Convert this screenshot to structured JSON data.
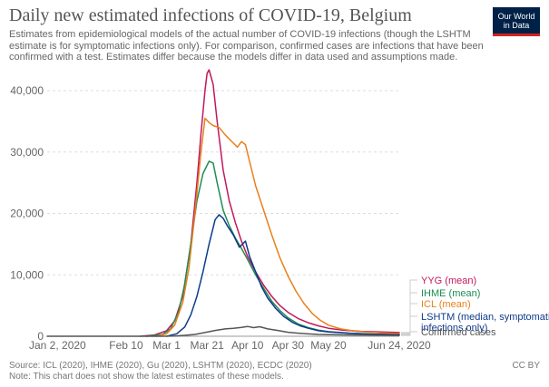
{
  "header": {
    "title": "Daily new estimated infections of COVID-19, Belgium",
    "subtitle": "Estimates from epidemiological models of the actual number of COVID-19 infections (though the LSHTM estimate is for symptomatic infections only). For comparison, confirmed cases are infections that have been confirmed with a test. Estimates differ because the models differ in data used and assumptions made.",
    "logo_line1": "Our World",
    "logo_line2": "in Data"
  },
  "footer": {
    "source": "Source: ICL (2020), IHME (2020), Gu (2020), LSHTM (2020), ECDC (2020)",
    "note": "Note: This chart does not show the latest estimates of these models.",
    "license": "CC BY"
  },
  "colors": {
    "yyg": "#c2185b",
    "ihme": "#1e8c52",
    "icl": "#e8801c",
    "lshtm": "#0d3b8c",
    "confirmed": "#555555",
    "grid": "#dddddd",
    "axis_text": "#666666",
    "logo_bg": "#002147",
    "logo_accent": "#ce261e"
  },
  "chart_data": {
    "type": "line",
    "title": "Daily new estimated infections of COVID-19, Belgium",
    "x_axis": {
      "type": "date",
      "min": "2020-01-02",
      "max": "2020-06-24",
      "ticks": [
        {
          "date": "2020-01-02",
          "label": "Jan 2, 2020"
        },
        {
          "date": "2020-02-10",
          "label": "Feb 10"
        },
        {
          "date": "2020-03-01",
          "label": "Mar 1"
        },
        {
          "date": "2020-03-21",
          "label": "Mar 21"
        },
        {
          "date": "2020-04-10",
          "label": "Apr 10"
        },
        {
          "date": "2020-04-30",
          "label": "Apr 30"
        },
        {
          "date": "2020-05-20",
          "label": "May 20"
        },
        {
          "date": "2020-06-24",
          "label": "Jun 24, 2020"
        }
      ]
    },
    "y_axis": {
      "min": 0,
      "max": 40000,
      "ticks": [
        {
          "value": 0,
          "label": "0"
        },
        {
          "value": 10000,
          "label": "10,000"
        },
        {
          "value": 20000,
          "label": "20,000"
        },
        {
          "value": 30000,
          "label": "30,000"
        },
        {
          "value": 40000,
          "label": "40,000"
        }
      ]
    },
    "grid": true,
    "legend_position": "right",
    "series": [
      {
        "key": "yyg",
        "name": "YYG (mean)",
        "label_lines": [
          "YYG (mean)"
        ],
        "points": [
          [
            "2020-02-17",
            0
          ],
          [
            "2020-02-24",
            200
          ],
          [
            "2020-03-01",
            900
          ],
          [
            "2020-03-05",
            2500
          ],
          [
            "2020-03-09",
            6500
          ],
          [
            "2020-03-13",
            15000
          ],
          [
            "2020-03-16",
            25000
          ],
          [
            "2020-03-18",
            33000
          ],
          [
            "2020-03-20",
            40000
          ],
          [
            "2020-03-21",
            42800
          ],
          [
            "2020-03-22",
            43400
          ],
          [
            "2020-03-24",
            41000
          ],
          [
            "2020-03-26",
            35000
          ],
          [
            "2020-03-29",
            27000
          ],
          [
            "2020-04-01",
            22000
          ],
          [
            "2020-04-04",
            18500
          ],
          [
            "2020-04-07",
            15500
          ],
          [
            "2020-04-10",
            13000
          ],
          [
            "2020-04-14",
            10500
          ],
          [
            "2020-04-18",
            8300
          ],
          [
            "2020-04-22",
            6500
          ],
          [
            "2020-04-26",
            5000
          ],
          [
            "2020-04-30",
            3900
          ],
          [
            "2020-05-05",
            2900
          ],
          [
            "2020-05-10",
            2200
          ],
          [
            "2020-05-15",
            1700
          ],
          [
            "2020-05-20",
            1300
          ],
          [
            "2020-05-27",
            1000
          ],
          [
            "2020-06-05",
            800
          ],
          [
            "2020-06-15",
            700
          ],
          [
            "2020-06-24",
            600
          ]
        ]
      },
      {
        "key": "ihme",
        "name": "IHME (mean)",
        "label_lines": [
          "IHME (mean)"
        ],
        "points": [
          [
            "2020-02-20",
            0
          ],
          [
            "2020-02-28",
            300
          ],
          [
            "2020-03-03",
            1200
          ],
          [
            "2020-03-07",
            4000
          ],
          [
            "2020-03-10",
            8500
          ],
          [
            "2020-03-13",
            15000
          ],
          [
            "2020-03-16",
            22000
          ],
          [
            "2020-03-19",
            26500
          ],
          [
            "2020-03-22",
            28500
          ],
          [
            "2020-03-24",
            28200
          ],
          [
            "2020-03-26",
            25000
          ],
          [
            "2020-03-29",
            20500
          ],
          [
            "2020-04-01",
            18000
          ],
          [
            "2020-04-04",
            16000
          ],
          [
            "2020-04-07",
            14300
          ],
          [
            "2020-04-10",
            12500
          ],
          [
            "2020-04-14",
            10000
          ],
          [
            "2020-04-18",
            7800
          ],
          [
            "2020-04-22",
            5700
          ],
          [
            "2020-04-26",
            4200
          ],
          [
            "2020-04-30",
            3000
          ],
          [
            "2020-05-05",
            2000
          ],
          [
            "2020-05-10",
            1400
          ],
          [
            "2020-05-15",
            1000
          ],
          [
            "2020-05-20",
            750
          ],
          [
            "2020-05-30",
            500
          ],
          [
            "2020-06-10",
            350
          ],
          [
            "2020-06-24",
            250
          ]
        ]
      },
      {
        "key": "icl",
        "name": "ICL (mean)",
        "label_lines": [
          "ICL (mean)"
        ],
        "points": [
          [
            "2020-02-25",
            0
          ],
          [
            "2020-03-01",
            400
          ],
          [
            "2020-03-05",
            1800
          ],
          [
            "2020-03-09",
            5500
          ],
          [
            "2020-03-12",
            11000
          ],
          [
            "2020-03-15",
            20000
          ],
          [
            "2020-03-18",
            30000
          ],
          [
            "2020-03-20",
            35500
          ],
          [
            "2020-03-22",
            34800
          ],
          [
            "2020-03-24",
            34300
          ],
          [
            "2020-03-27",
            34000
          ],
          [
            "2020-03-30",
            32800
          ],
          [
            "2020-04-02",
            31800
          ],
          [
            "2020-04-05",
            30800
          ],
          [
            "2020-04-07",
            31700
          ],
          [
            "2020-04-09",
            31200
          ],
          [
            "2020-04-11",
            28500
          ],
          [
            "2020-04-14",
            24500
          ],
          [
            "2020-04-18",
            20500
          ],
          [
            "2020-04-22",
            16500
          ],
          [
            "2020-04-26",
            12800
          ],
          [
            "2020-04-30",
            9800
          ],
          [
            "2020-05-04",
            7300
          ],
          [
            "2020-05-08",
            5300
          ],
          [
            "2020-05-12",
            3700
          ],
          [
            "2020-05-16",
            2600
          ],
          [
            "2020-05-20",
            1800
          ],
          [
            "2020-05-26",
            1200
          ],
          [
            "2020-06-03",
            800
          ],
          [
            "2020-06-15",
            550
          ],
          [
            "2020-06-24",
            450
          ]
        ]
      },
      {
        "key": "lshtm",
        "name": "LSHTM (median, symptomatic infections only)",
        "label_lines": [
          "LSHTM (median, symptomatic",
          "infections only)"
        ],
        "points": [
          [
            "2020-03-01",
            0
          ],
          [
            "2020-03-06",
            400
          ],
          [
            "2020-03-10",
            1500
          ],
          [
            "2020-03-13",
            3500
          ],
          [
            "2020-03-16",
            6500
          ],
          [
            "2020-03-19",
            10500
          ],
          [
            "2020-03-22",
            15000
          ],
          [
            "2020-03-25",
            19000
          ],
          [
            "2020-03-27",
            19800
          ],
          [
            "2020-03-29",
            19200
          ],
          [
            "2020-03-31",
            18000
          ],
          [
            "2020-04-03",
            16500
          ],
          [
            "2020-04-06",
            14500
          ],
          [
            "2020-04-09",
            15500
          ],
          [
            "2020-04-11",
            13000
          ],
          [
            "2020-04-14",
            10500
          ],
          [
            "2020-04-17",
            8000
          ],
          [
            "2020-04-20",
            6200
          ],
          [
            "2020-04-24",
            4500
          ],
          [
            "2020-04-28",
            3200
          ],
          [
            "2020-05-02",
            2300
          ],
          [
            "2020-05-06",
            1700
          ],
          [
            "2020-05-10",
            1300
          ],
          [
            "2020-05-15",
            900
          ],
          [
            "2020-05-20",
            700
          ],
          [
            "2020-05-30",
            500
          ],
          [
            "2020-06-10",
            350
          ],
          [
            "2020-06-24",
            250
          ]
        ]
      },
      {
        "key": "confirmed",
        "name": "Confirmed cases",
        "label_lines": [
          "Confirmed cases"
        ],
        "points": [
          [
            "2020-01-02",
            0
          ],
          [
            "2020-02-28",
            0
          ],
          [
            "2020-03-05",
            40
          ],
          [
            "2020-03-10",
            150
          ],
          [
            "2020-03-15",
            300
          ],
          [
            "2020-03-20",
            600
          ],
          [
            "2020-03-25",
            950
          ],
          [
            "2020-03-30",
            1200
          ],
          [
            "2020-04-03",
            1300
          ],
          [
            "2020-04-07",
            1450
          ],
          [
            "2020-04-10",
            1600
          ],
          [
            "2020-04-13",
            1400
          ],
          [
            "2020-04-16",
            1550
          ],
          [
            "2020-04-20",
            1200
          ],
          [
            "2020-04-25",
            950
          ],
          [
            "2020-04-30",
            650
          ],
          [
            "2020-05-05",
            500
          ],
          [
            "2020-05-10",
            380
          ],
          [
            "2020-05-15",
            300
          ],
          [
            "2020-05-20",
            270
          ],
          [
            "2020-05-30",
            220
          ],
          [
            "2020-06-10",
            170
          ],
          [
            "2020-06-24",
            130
          ]
        ]
      }
    ]
  }
}
